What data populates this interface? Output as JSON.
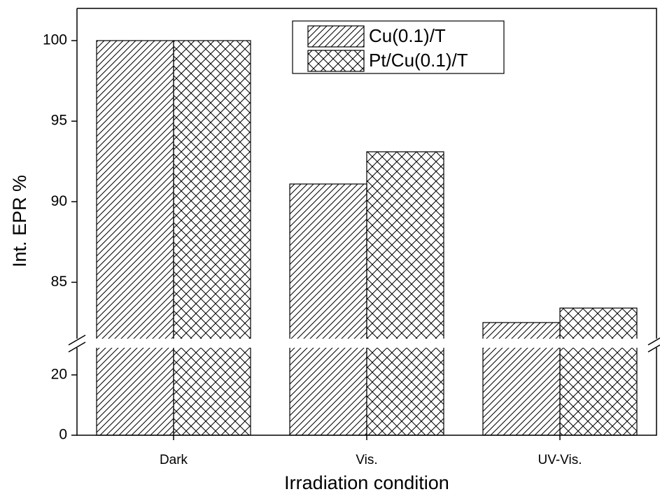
{
  "chart_data": {
    "type": "bar",
    "x_label": "Irradiation condition",
    "y_label": "Int. EPR %",
    "categories": [
      "Dark",
      "Vis.",
      "UV-Vis."
    ],
    "series": [
      {
        "name": "Cu(0.1)/T",
        "color": "#000000",
        "pattern": "diagonal",
        "values": [
          100,
          91.1,
          82.5
        ]
      },
      {
        "name": "Pt/Cu(0.1)/T",
        "color": "#000000",
        "pattern": "crosshatch",
        "values": [
          100,
          93.1,
          83.4
        ]
      }
    ],
    "ylim": [
      0,
      102
    ],
    "ybreak": [
      29,
      81.5
    ],
    "yticks": [
      0,
      20,
      85,
      90,
      95,
      100
    ],
    "legend": "upper center"
  }
}
